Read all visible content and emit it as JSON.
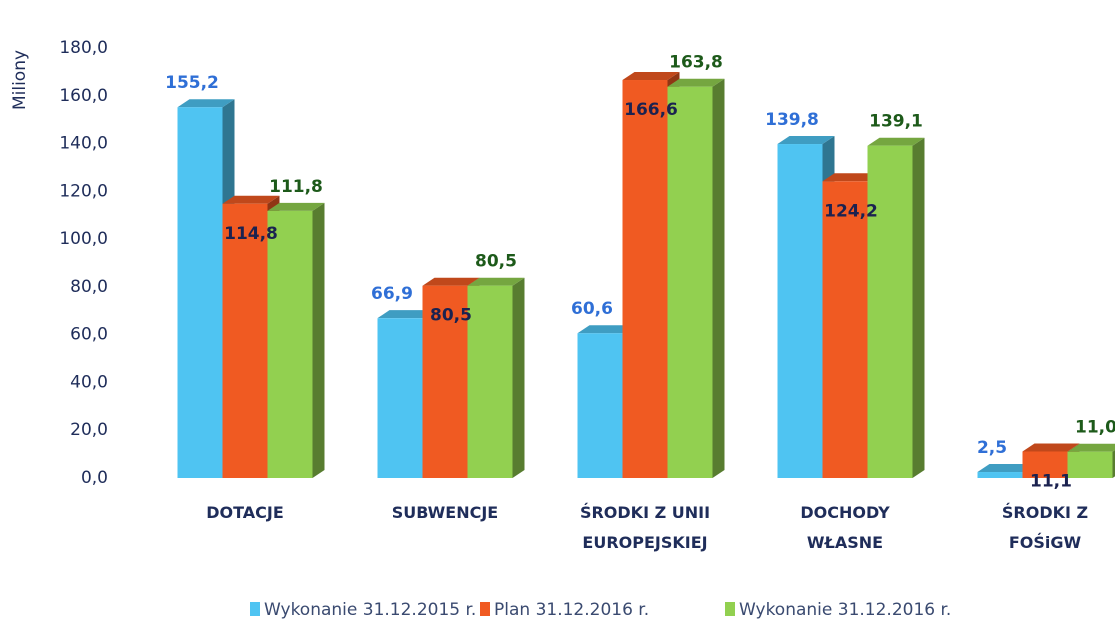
{
  "chart_data": {
    "type": "bar3d",
    "y_axis_label": "Miliony",
    "categories": [
      "DOTACJE",
      "SUBWENCJE",
      "ŚRODKI Z UNII EUROPEJSKIEJ",
      "DOCHODY WŁASNE",
      "ŚRODKI Z FOŚiGW"
    ],
    "series": [
      {
        "name": "Wykonanie 31.12.2015 r.",
        "color": "#4fc4f2",
        "values": [
          155.2,
          66.9,
          60.6,
          139.8,
          2.5
        ],
        "value_labels": [
          "155,2",
          "66,9",
          "60,6",
          "139,8",
          "2,5"
        ]
      },
      {
        "name": "Plan 31.12.2016 r.",
        "color": "#f05a22",
        "values": [
          114.8,
          80.5,
          166.6,
          124.2,
          11.1
        ],
        "value_labels": [
          "114,8",
          "80,5",
          "166,6",
          "124,2",
          "11,1"
        ]
      },
      {
        "name": "Wykonanie 31.12.2016 r.",
        "color": "#92d050",
        "values": [
          111.8,
          80.5,
          163.8,
          139.1,
          11.0
        ],
        "value_labels": [
          "111,8",
          "80,5",
          "163,8",
          "139,1",
          "11,0"
        ]
      }
    ],
    "ylim": [
      0,
      180
    ],
    "yticks": [
      {
        "value": 0,
        "label": "0,0"
      },
      {
        "value": 20,
        "label": "20,0"
      },
      {
        "value": 40,
        "label": "40,0"
      },
      {
        "value": 60,
        "label": "60,0"
      },
      {
        "value": 80,
        "label": "80,0"
      },
      {
        "value": 100,
        "label": "100,0"
      },
      {
        "value": 120,
        "label": "120,0"
      },
      {
        "value": 140,
        "label": "140,0"
      },
      {
        "value": 160,
        "label": "160,0"
      },
      {
        "value": 180,
        "label": "180,0"
      }
    ],
    "grid": false,
    "legend": "bottom"
  }
}
